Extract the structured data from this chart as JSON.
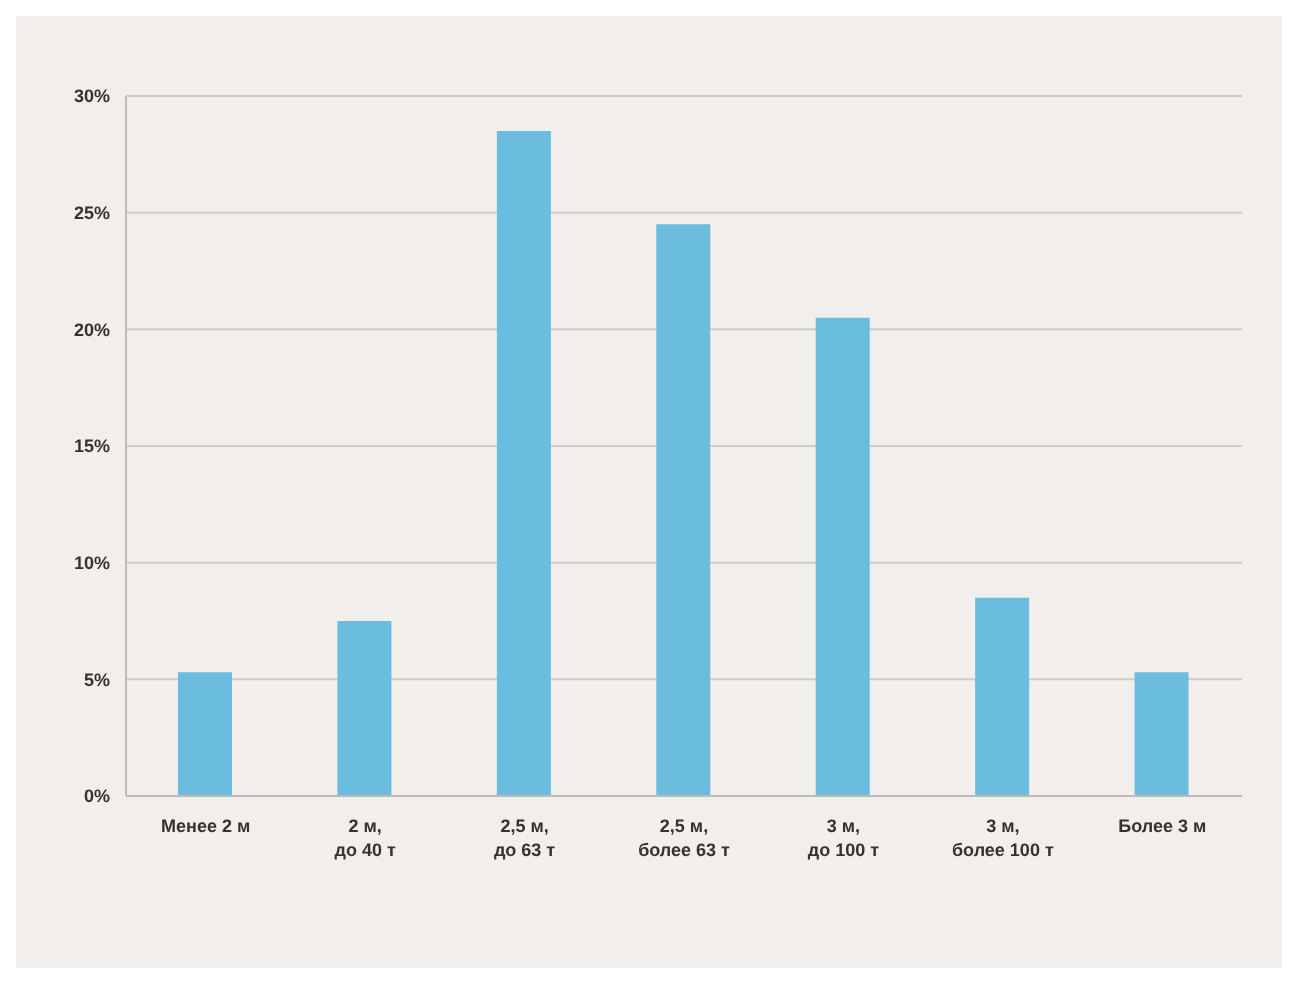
{
  "chart_data": {
    "type": "bar",
    "categories": [
      "Менее 2 м",
      "2 м,\nдо 40 т",
      "2,5 м,\nдо 63 т",
      "2,5 м,\nболее 63 т",
      "3 м,\nдо 100 т",
      "3 м,\nболее 100 т",
      "Более 3 м"
    ],
    "values": [
      5.3,
      7.5,
      28.5,
      24.5,
      20.5,
      8.5,
      5.3
    ],
    "color": "#6bbde0",
    "ylim": [
      0,
      30
    ],
    "yticks": [
      {
        "value": 0,
        "label": "0%"
      },
      {
        "value": 5,
        "label": "5%"
      },
      {
        "value": 10,
        "label": "10%"
      },
      {
        "value": 15,
        "label": "15%"
      },
      {
        "value": 20,
        "label": "20%"
      },
      {
        "value": 25,
        "label": "25%"
      },
      {
        "value": 30,
        "label": "30%"
      }
    ],
    "grid": "y"
  }
}
